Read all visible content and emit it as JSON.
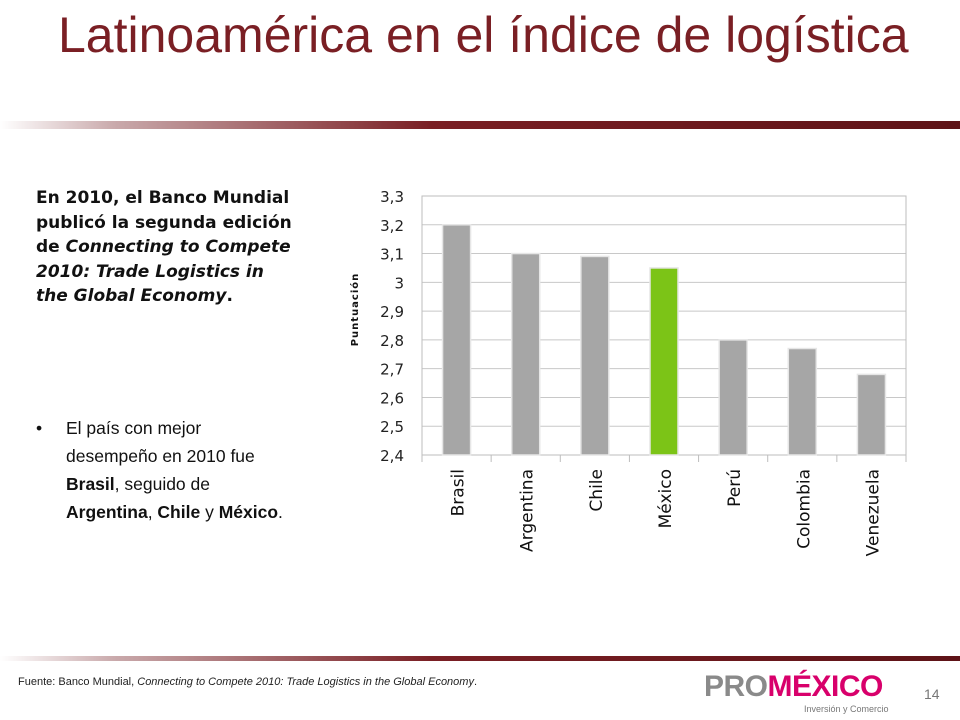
{
  "slide": {
    "title": "Latinoamérica en el índice de logística",
    "intro": {
      "lead": "En 2010, el Banco Mundial publicó la segunda edición de ",
      "publication": "Connecting to Compete 2010: Trade Logistics in the Global Economy",
      "end": "."
    },
    "bullet": {
      "dot": "•",
      "text1": "El país con mejor desempeño en 2010 fue ",
      "b1": "Brasil",
      "text2": ", seguido de ",
      "b2": "Argentina",
      "text3": ", ",
      "b3": "Chile",
      "text4": " y ",
      "b4": "México",
      "text5": "."
    },
    "source": {
      "lead": "Fuente: Banco Mundial, ",
      "title": "Connecting to Compete 2010: Trade Logistics in the Global Economy",
      "end": "."
    },
    "page_number": "14"
  },
  "logo": {
    "pro": "PRO",
    "mexico": "MÉXICO",
    "tagline": "Inversión y Comercio"
  },
  "colors": {
    "title": "#7a1f24",
    "bar_default": "#a6a6a6",
    "bar_highlight": "#7cc417",
    "logo_pro": "#8a8a8a",
    "logo_mexico": "#d8006b"
  },
  "chart_data": {
    "type": "bar",
    "categories": [
      "Brasil",
      "Argentina",
      "Chile",
      "México",
      "Perú",
      "Colombia",
      "Venezuela"
    ],
    "values": [
      3.2,
      3.1,
      3.09,
      3.05,
      2.8,
      2.77,
      2.68
    ],
    "highlight": "México",
    "ylabel": "Puntuación",
    "ylim": [
      2.4,
      3.3
    ],
    "yticks": [
      "2,4",
      "2,5",
      "2,6",
      "2,7",
      "2,8",
      "2,9",
      "3",
      "3,1",
      "3,2",
      "3,3"
    ],
    "ytick_values": [
      2.4,
      2.5,
      2.6,
      2.7,
      2.8,
      2.9,
      3.0,
      3.1,
      3.2,
      3.3
    ],
    "grid": true,
    "legend": "none"
  }
}
